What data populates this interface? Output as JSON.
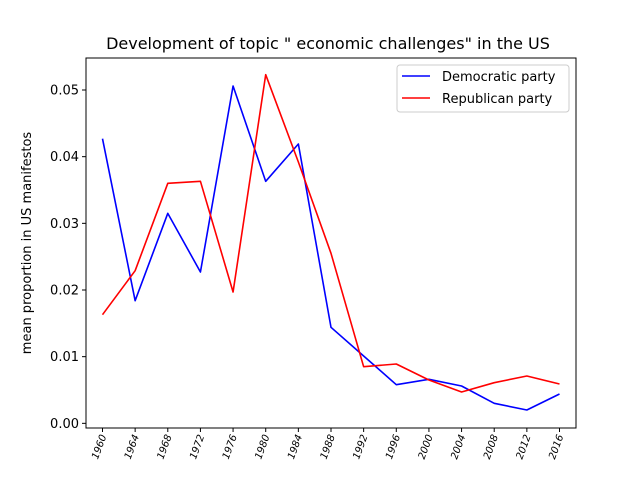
{
  "chart_data": {
    "type": "line",
    "title": "Development of topic \" economic challenges\" in the US",
    "xlabel": "",
    "ylabel": "mean proportion in US manifestos",
    "x": [
      "1960",
      "1964",
      "1968",
      "1972",
      "1976",
      "1980",
      "1984",
      "1988",
      "1992",
      "1996",
      "2000",
      "2004",
      "2008",
      "2012",
      "2016"
    ],
    "ylim": [
      -0.0007,
      0.0548
    ],
    "yticks": [
      0.0,
      0.01,
      0.02,
      0.03,
      0.04,
      0.05
    ],
    "ytick_labels": [
      "0.00",
      "0.01",
      "0.02",
      "0.03",
      "0.04",
      "0.05"
    ],
    "grid": false,
    "legend_position": "top-right",
    "series": [
      {
        "name": "Democratic party",
        "color": "#0000ff",
        "values": [
          0.0427,
          0.0184,
          0.0315,
          0.0227,
          0.0506,
          0.0363,
          0.0419,
          0.0144,
          0.0101,
          0.0058,
          0.0066,
          0.0056,
          0.003,
          0.002,
          0.0044
        ]
      },
      {
        "name": "Republican party",
        "color": "#ff0000",
        "values": [
          0.0163,
          0.0229,
          0.036,
          0.0363,
          0.0197,
          0.0523,
          0.0392,
          0.0255,
          0.0085,
          0.0089,
          0.0065,
          0.0047,
          0.0061,
          0.0071,
          0.0059
        ]
      }
    ]
  }
}
